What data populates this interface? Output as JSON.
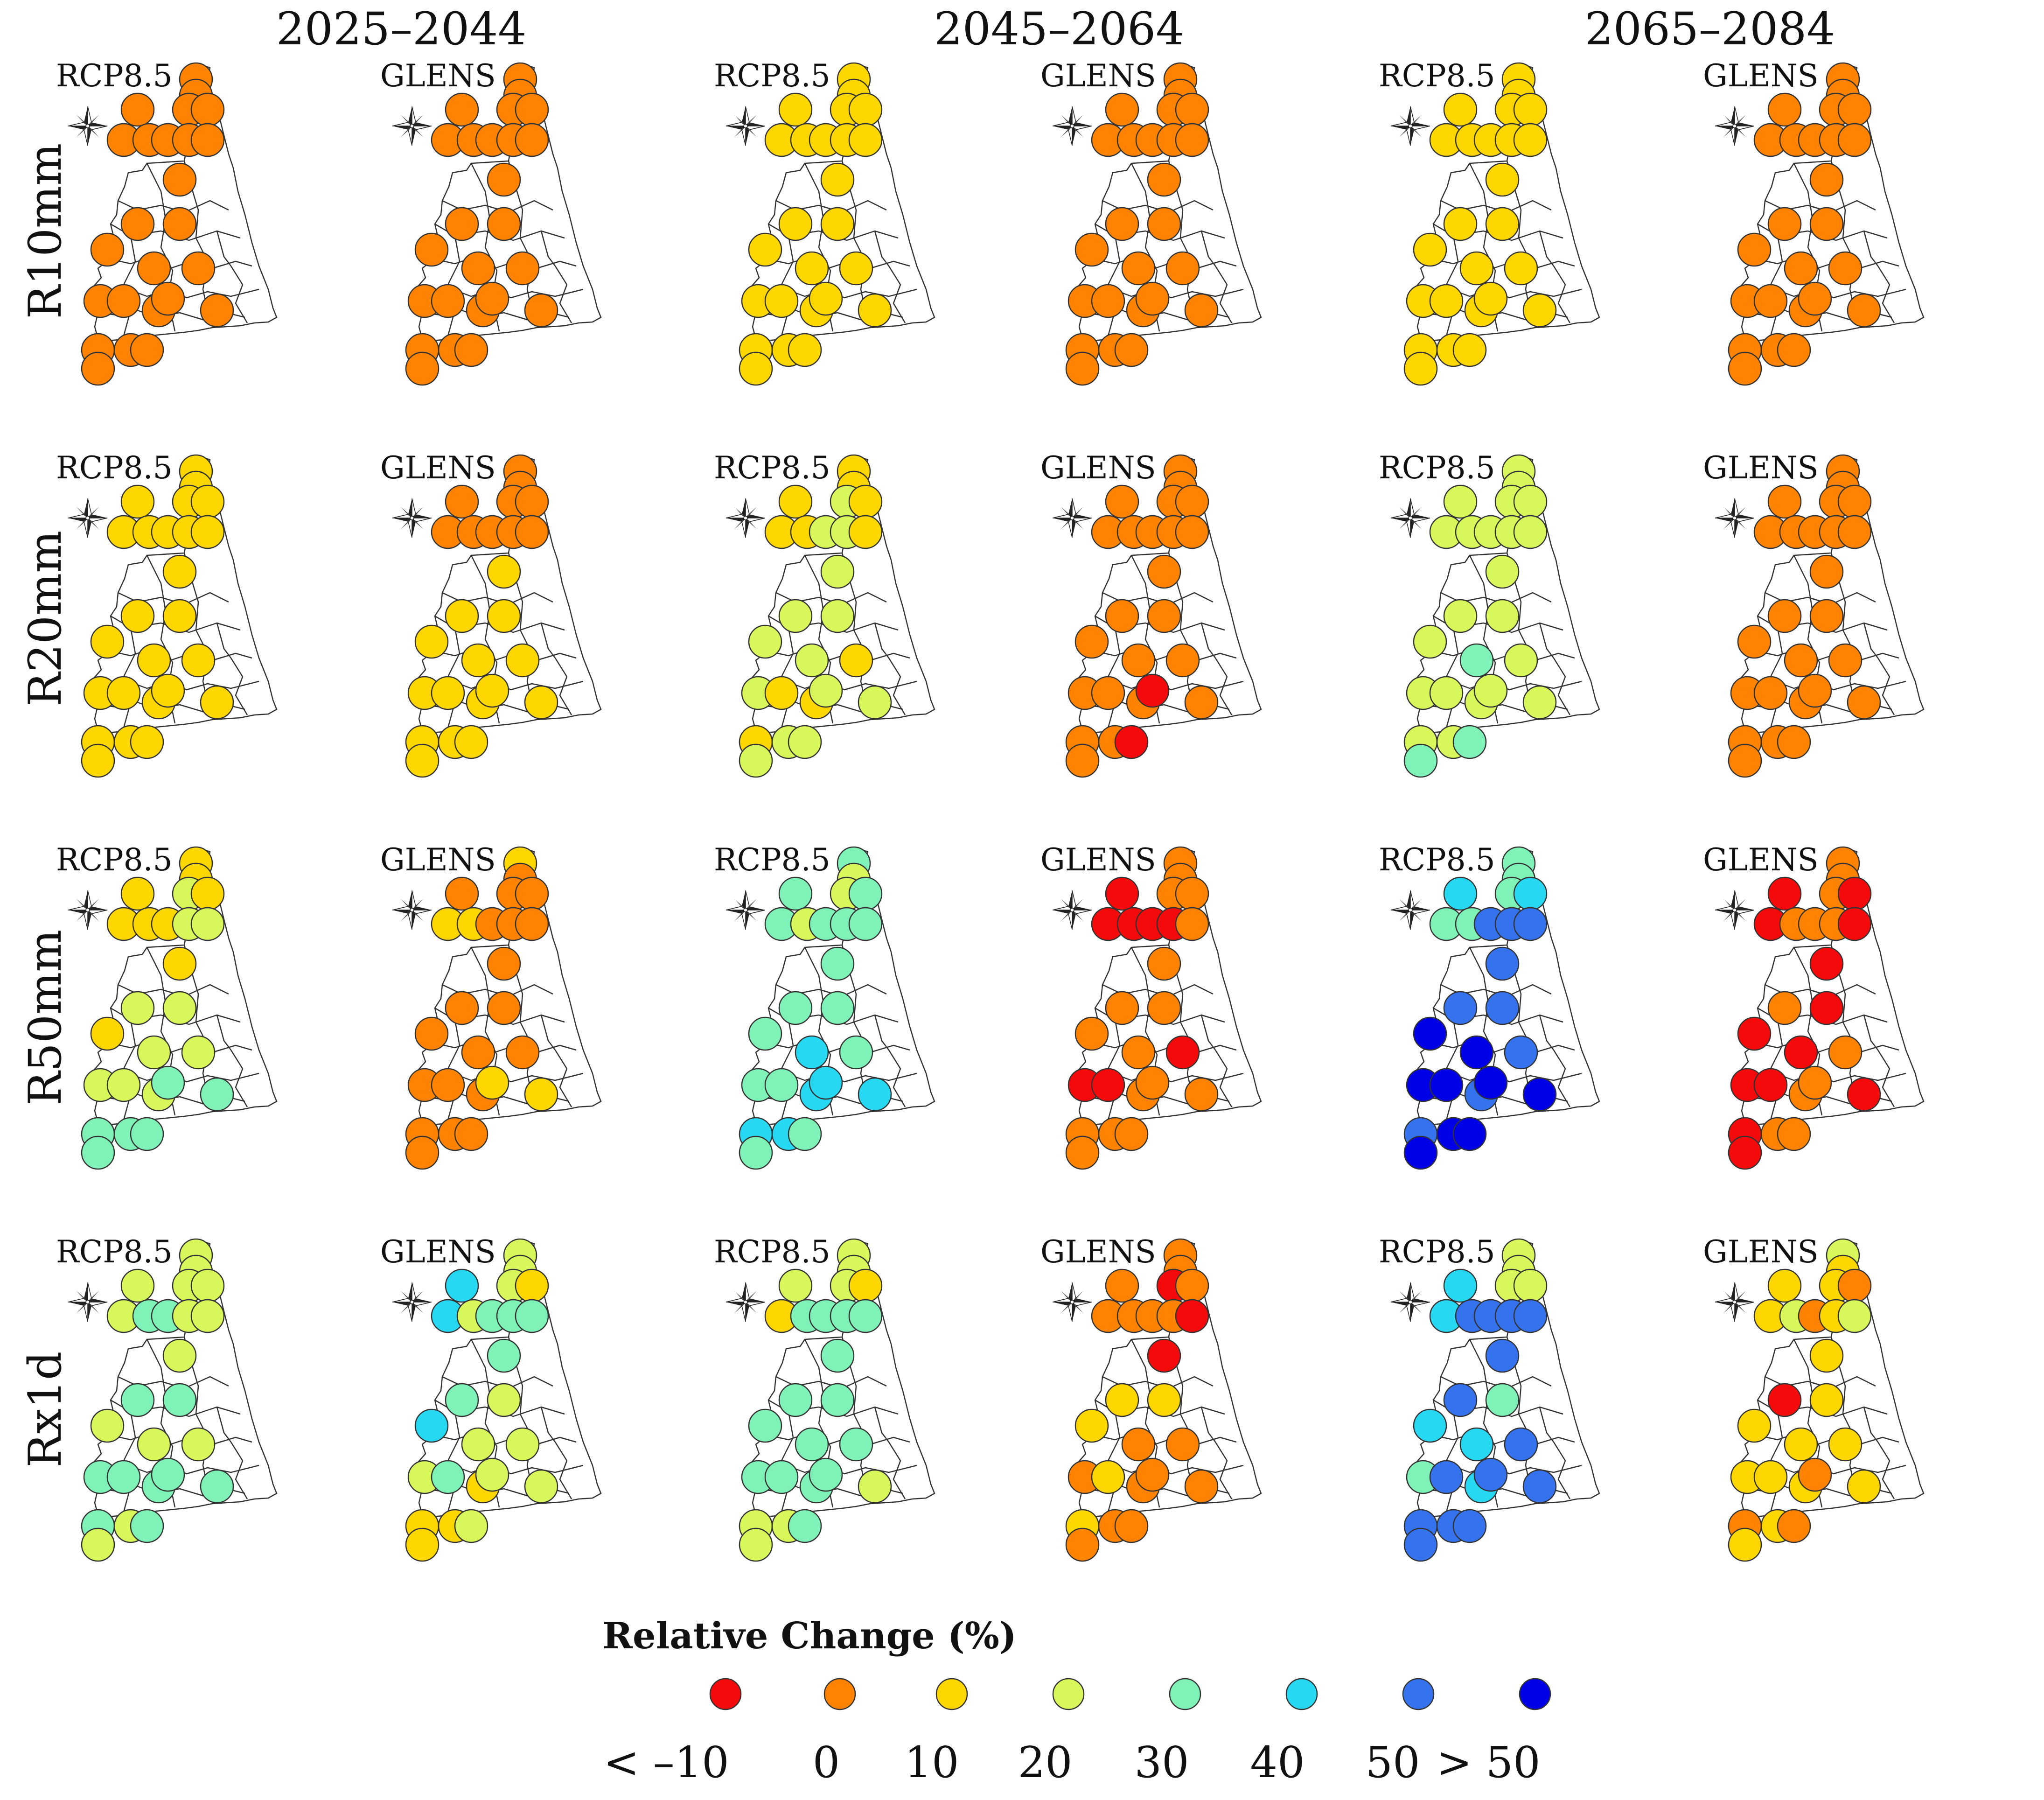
{
  "periods": [
    "2025–2044",
    "2045–2064",
    "2065–2084"
  ],
  "scenarios": [
    "RCP8.5",
    "GLENS"
  ],
  "indices": [
    "R10mm",
    "R20mm",
    "R50mm",
    "Rx1d"
  ],
  "legend": {
    "title": "Relative Change (%)",
    "labels": [
      "< –10",
      "0",
      "10",
      "20",
      "30",
      "40",
      "50",
      "> 50"
    ],
    "colors": [
      "#f40a0a",
      "#ff8200",
      "#ffd700",
      "#d8f75a",
      "#7ff2b8",
      "#27d8f2",
      "#3472ee",
      "#0000e6"
    ]
  },
  "station_classes": [
    [
      "1111111111111111111111111",
      "1111111111111111111111111",
      "2222222222222222222222222",
      "1111111111111111111111111",
      "2222222222222222222222222",
      "1111111111111111111111111"
    ],
    [
      "2222222222222222222222222",
      "1111111111222222222222222",
      "2232222332333332322323333",
      "1111111111111111111111100",
      "3333333333333343333334343",
      "1111111111111111111111111"
    ],
    [
      "2232222233233233333444444",
      "2111122111111111111211112",
      "4334443444444454445554545",
      "1111000001111110001111111",
      "4445544666666776776767777",
      "1110001110010001001000111"
    ],
    [
      "3333334433344333444443344",
      "3332553444443533342322233",
      "3332324444444444444333344",
      "1101111110022211121121111",
      "3333556666664556465666666",
      "3221223123202222222212211"
    ]
  ]
}
